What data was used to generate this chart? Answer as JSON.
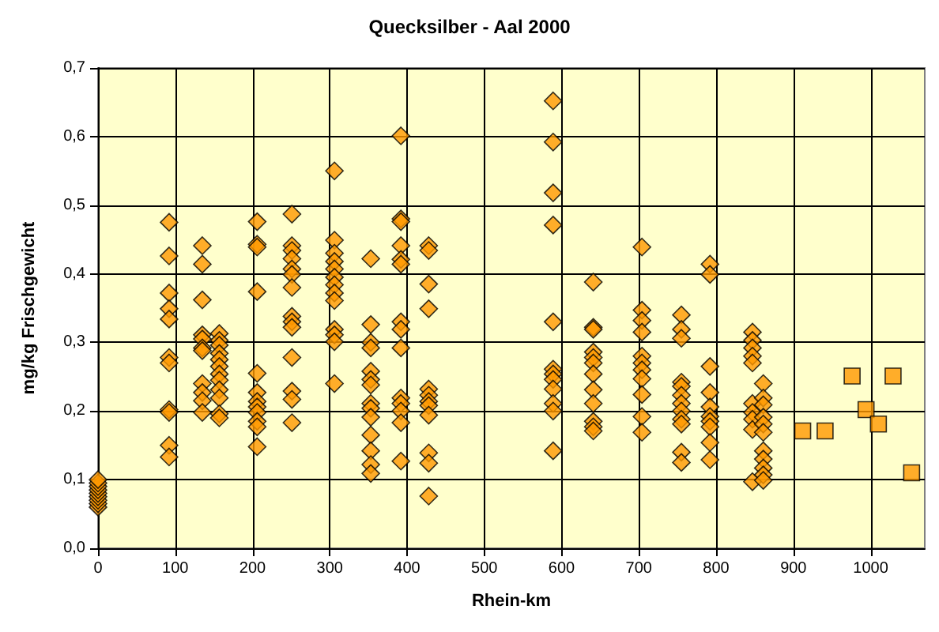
{
  "chart_data": {
    "type": "scatter",
    "title": "Quecksilber - Aal 2000",
    "xlabel": "Rhein-km",
    "ylabel": "mg/kg Frischgewicht",
    "xlim": [
      0,
      1070
    ],
    "xticks": [
      0,
      100,
      200,
      300,
      400,
      500,
      600,
      700,
      800,
      900,
      1000
    ],
    "ylim": [
      0,
      0.7
    ],
    "yticks": [
      {
        "value": 0,
        "label": "0,0"
      },
      {
        "value": 0.1,
        "label": "0,1"
      },
      {
        "value": 0.2,
        "label": "0,2"
      },
      {
        "value": 0.3,
        "label": "0,3"
      },
      {
        "value": 0.4,
        "label": "0,4"
      },
      {
        "value": 0.5,
        "label": "0,5"
      },
      {
        "value": 0.6,
        "label": "0,6"
      },
      {
        "value": 0.7,
        "label": "0,7"
      }
    ],
    "grid": true,
    "series": [
      {
        "color": "#ff9900",
        "marker": "diamond",
        "x": [
          0,
          0,
          0,
          0,
          0,
          0,
          0,
          0,
          0,
          92,
          92,
          92,
          92,
          92,
          92,
          92,
          92,
          92,
          92,
          92,
          135,
          135,
          135,
          135,
          135,
          135,
          135,
          135,
          135,
          135,
          135,
          157,
          157,
          157,
          157,
          157,
          157,
          157,
          157,
          157,
          157,
          157,
          157,
          206,
          206,
          206,
          206,
          206,
          206,
          206,
          206,
          206,
          206,
          206,
          206,
          251,
          251,
          251,
          251,
          251,
          251,
          251,
          251,
          251,
          251,
          251,
          251,
          251,
          251,
          306,
          306,
          306,
          306,
          306,
          306,
          306,
          306,
          306,
          306,
          306,
          306,
          306,
          353,
          353,
          353,
          353,
          353,
          353,
          353,
          353,
          353,
          353,
          353,
          353,
          353,
          353,
          392,
          392,
          392,
          392,
          392,
          392,
          392,
          392,
          392,
          392,
          392,
          392,
          392,
          392,
          428,
          428,
          428,
          428,
          428,
          428,
          428,
          428,
          428,
          428,
          428,
          428,
          589,
          589,
          589,
          589,
          589,
          589,
          589,
          589,
          589,
          589,
          589,
          589,
          641,
          641,
          641,
          641,
          641,
          641,
          641,
          641,
          641,
          641,
          641,
          641,
          704,
          704,
          704,
          704,
          704,
          704,
          704,
          704,
          704,
          704,
          704,
          755,
          755,
          755,
          755,
          755,
          755,
          755,
          755,
          755,
          755,
          755,
          755,
          792,
          792,
          792,
          792,
          792,
          792,
          792,
          792,
          792,
          792,
          847,
          847,
          847,
          847,
          847,
          847,
          847,
          847,
          847,
          847,
          861,
          861,
          861,
          861,
          861,
          861,
          861,
          861,
          861,
          861,
          861
        ],
        "values": [
          0.06,
          0.065,
          0.07,
          0.075,
          0.08,
          0.085,
          0.09,
          0.095,
          0.1,
          0.475,
          0.426,
          0.372,
          0.349,
          0.334,
          0.278,
          0.27,
          0.202,
          0.198,
          0.15,
          0.133,
          0.441,
          0.414,
          0.362,
          0.311,
          0.305,
          0.292,
          0.288,
          0.24,
          0.227,
          0.215,
          0.198,
          0.313,
          0.303,
          0.296,
          0.284,
          0.275,
          0.265,
          0.254,
          0.245,
          0.231,
          0.219,
          0.196,
          0.19,
          0.476,
          0.443,
          0.439,
          0.374,
          0.255,
          0.227,
          0.214,
          0.206,
          0.198,
          0.185,
          0.177,
          0.148,
          0.487,
          0.441,
          0.434,
          0.422,
          0.407,
          0.399,
          0.38,
          0.338,
          0.33,
          0.322,
          0.278,
          0.229,
          0.217,
          0.183,
          0.55,
          0.449,
          0.43,
          0.418,
          0.407,
          0.395,
          0.384,
          0.372,
          0.361,
          0.319,
          0.311,
          0.301,
          0.24,
          0.422,
          0.326,
          0.3,
          0.292,
          0.258,
          0.246,
          0.238,
          0.211,
          0.204,
          0.191,
          0.165,
          0.142,
          0.122,
          0.109,
          0.601,
          0.48,
          0.476,
          0.441,
          0.421,
          0.414,
          0.33,
          0.319,
          0.292,
          0.219,
          0.211,
          0.2,
          0.183,
          0.127,
          0.441,
          0.434,
          0.385,
          0.349,
          0.232,
          0.223,
          0.214,
          0.208,
          0.194,
          0.139,
          0.124,
          0.076,
          0.652,
          0.592,
          0.518,
          0.471,
          0.33,
          0.261,
          0.254,
          0.246,
          0.232,
          0.211,
          0.2,
          0.142,
          0.388,
          0.322,
          0.319,
          0.286,
          0.278,
          0.27,
          0.254,
          0.231,
          0.211,
          0.185,
          0.177,
          0.171,
          0.439,
          0.347,
          0.332,
          0.315,
          0.28,
          0.27,
          0.26,
          0.247,
          0.224,
          0.192,
          0.169,
          0.34,
          0.319,
          0.306,
          0.242,
          0.236,
          0.223,
          0.211,
          0.2,
          0.188,
          0.181,
          0.14,
          0.125,
          0.414,
          0.399,
          0.265,
          0.227,
          0.206,
          0.192,
          0.185,
          0.177,
          0.154,
          0.129,
          0.315,
          0.303,
          0.292,
          0.28,
          0.27,
          0.211,
          0.198,
          0.188,
          0.173,
          0.097,
          0.24,
          0.219,
          0.209,
          0.191,
          0.181,
          0.169,
          0.142,
          0.13,
          0.117,
          0.107,
          0.099
        ]
      },
      {
        "color": "#ff9900",
        "marker": "square",
        "x": [
          912,
          941,
          976,
          994,
          1010,
          1029,
          1053
        ],
        "values": [
          0.171,
          0.171,
          0.251,
          0.202,
          0.181,
          0.251,
          0.11
        ]
      }
    ]
  }
}
